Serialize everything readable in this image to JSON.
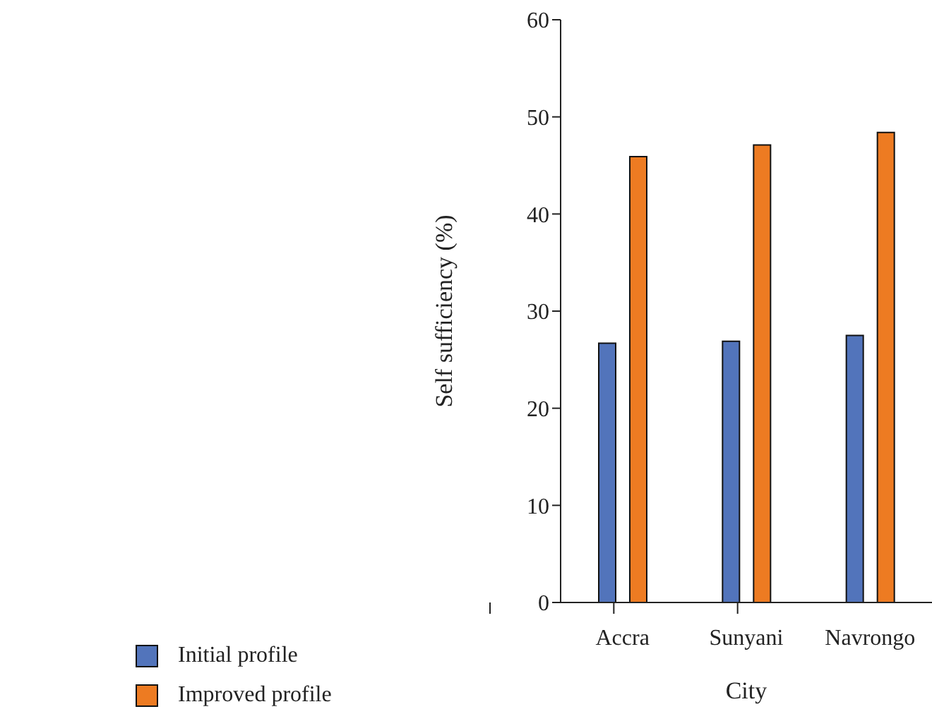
{
  "chart_data": {
    "type": "bar",
    "xlabel": "City",
    "ylabel": "Self sufficiency (%)",
    "categories": [
      "Accra",
      "Sunyani",
      "Navrongo"
    ],
    "series": [
      {
        "name": "Initial profile",
        "color": "#5274bb",
        "values": [
          26.7,
          26.9,
          27.5
        ]
      },
      {
        "name": "Improved profile",
        "color": "#ed7b22",
        "values": [
          45.9,
          47.1,
          48.4
        ]
      }
    ],
    "ylim": [
      0,
      60
    ],
    "yticks": [
      0,
      10,
      20,
      30,
      40,
      50,
      60
    ],
    "grid": false,
    "legend": "bottom left"
  }
}
